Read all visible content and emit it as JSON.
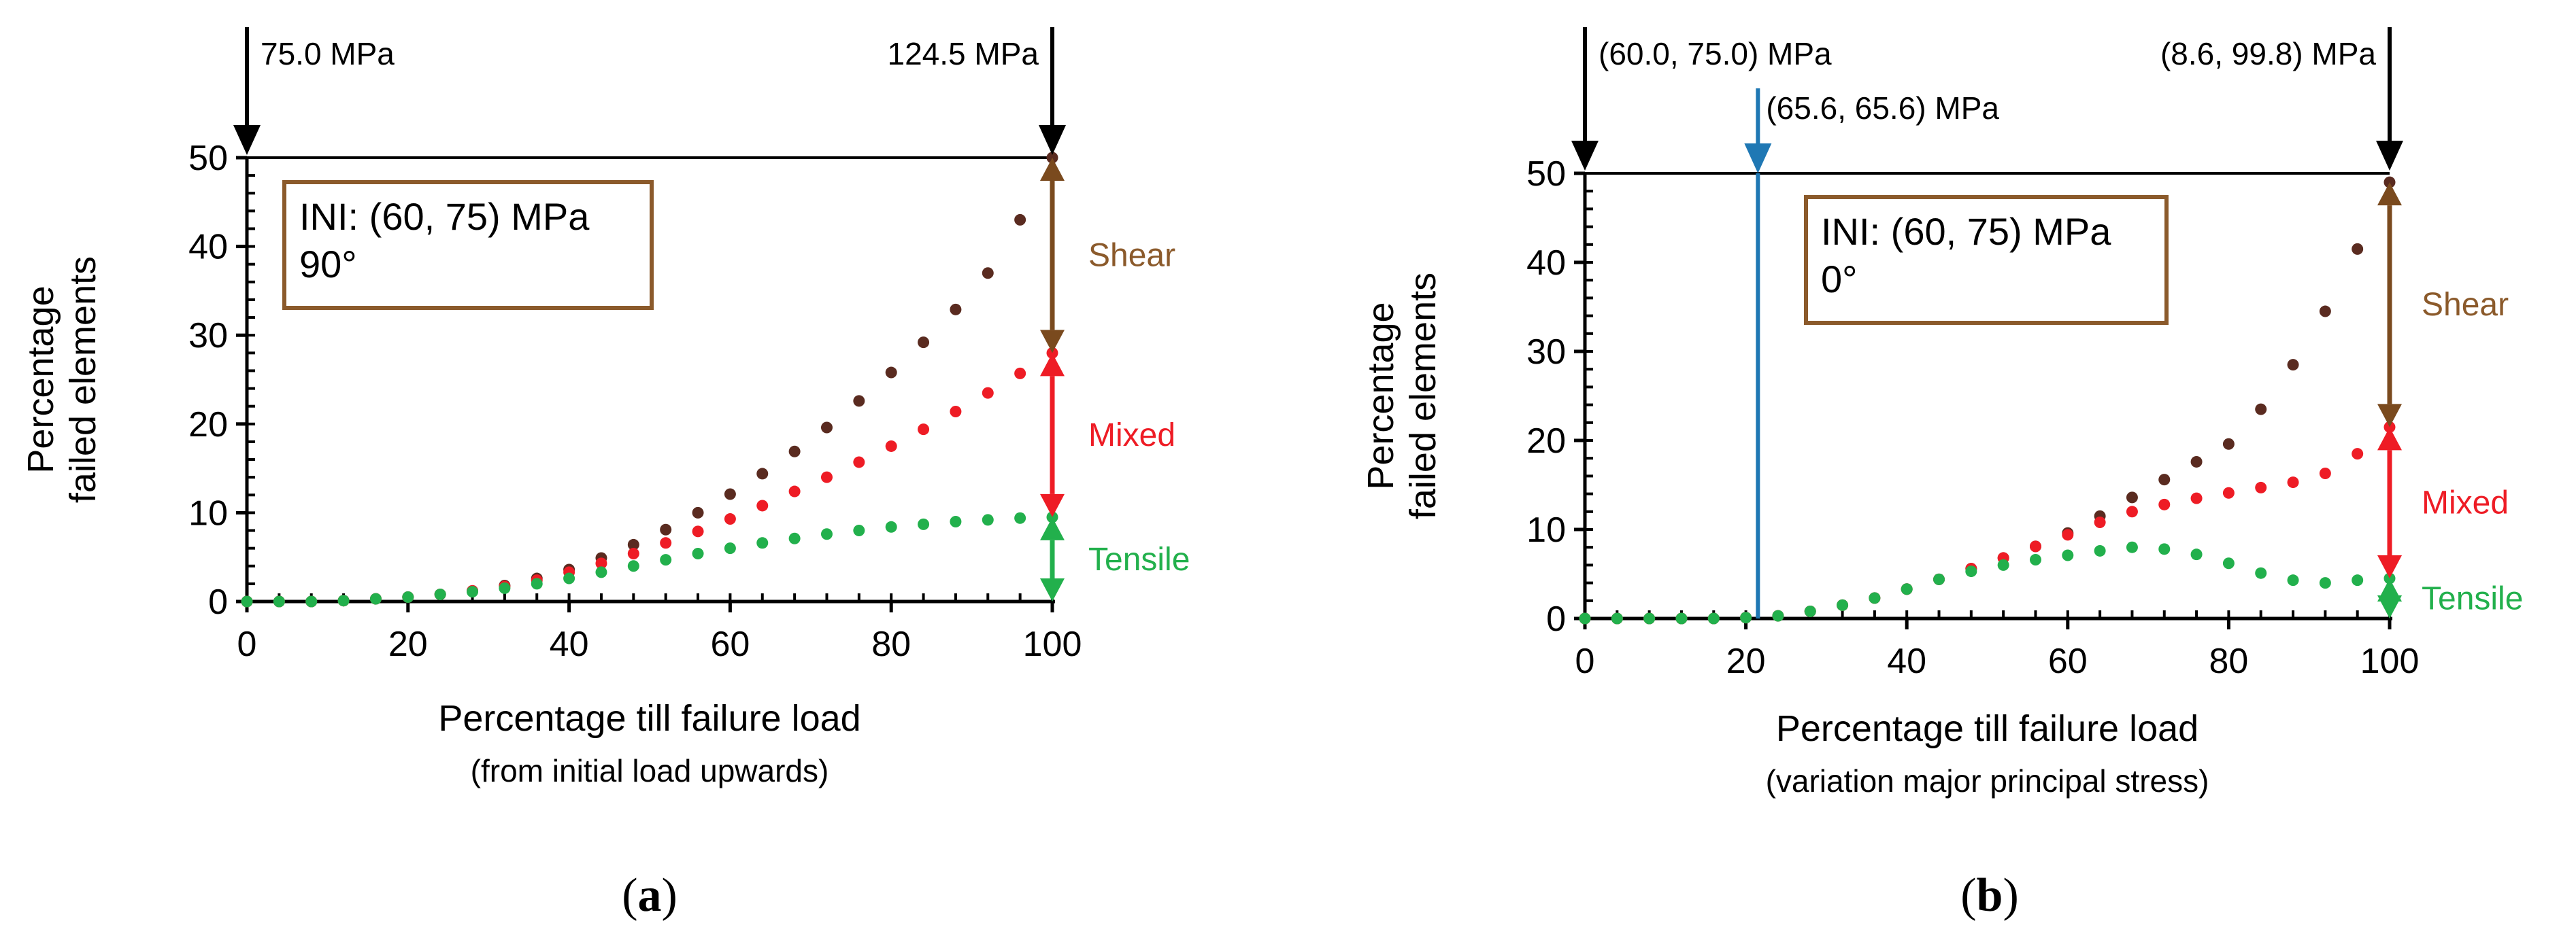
{
  "colors": {
    "shear": "#5a2b20",
    "mixed": "#ee1c25",
    "tensile": "#22b04c",
    "shear_label": "#8b5a2b",
    "mixed_label": "#ee1c25",
    "tensile_label": "#22b04c",
    "arrow_shear": "#7a4a1e",
    "blue": "#1f78b4",
    "box_border": "#8b5a2b"
  },
  "chart_data": [
    {
      "type": "scatter",
      "panel_label": "(a)",
      "xlabel": "Percentage till failure load",
      "xlabel_note": "(from initial load upwards)",
      "ylabel": [
        "Percentage",
        "failed elements"
      ],
      "xlim": [
        0,
        100
      ],
      "ylim": [
        0,
        50
      ],
      "xticks": [
        0,
        20,
        40,
        60,
        80,
        100
      ],
      "yticks": [
        0,
        10,
        20,
        30,
        40,
        50
      ],
      "box_text": [
        "INI: (60, 75) MPa",
        "90°"
      ],
      "load_annotations": [
        {
          "x": 0,
          "text": "75.0 MPa"
        },
        {
          "x": 100,
          "text": "124.5 MPa"
        }
      ],
      "range_labels": [
        {
          "name": "Shear",
          "from": 28,
          "to": 50
        },
        {
          "name": "Mixed",
          "from": 9.5,
          "to": 28
        },
        {
          "name": "Tensile",
          "from": 0,
          "to": 9.5
        }
      ],
      "series": [
        {
          "name": "Shear",
          "x": [
            0,
            4,
            8,
            12,
            16,
            20,
            24,
            28,
            32,
            36,
            40,
            44,
            48,
            52,
            56,
            60,
            64,
            68,
            72,
            76,
            80,
            84,
            88,
            92,
            96,
            100
          ],
          "y": [
            0,
            0,
            0,
            0.1,
            0.3,
            0.5,
            0.8,
            1.2,
            1.8,
            2.6,
            3.6,
            4.9,
            6.4,
            8.1,
            10.0,
            12.1,
            14.4,
            16.9,
            19.6,
            22.6,
            25.8,
            29.2,
            32.9,
            37.0,
            43.0,
            50.0
          ]
        },
        {
          "name": "Mixed",
          "x": [
            0,
            4,
            8,
            12,
            16,
            20,
            24,
            28,
            32,
            36,
            40,
            44,
            48,
            52,
            56,
            60,
            64,
            68,
            72,
            76,
            80,
            84,
            88,
            92,
            96,
            100
          ],
          "y": [
            0,
            0,
            0,
            0.1,
            0.3,
            0.5,
            0.8,
            1.2,
            1.7,
            2.4,
            3.3,
            4.3,
            5.4,
            6.6,
            7.9,
            9.3,
            10.8,
            12.4,
            14.0,
            15.7,
            17.5,
            19.4,
            21.4,
            23.5,
            25.7,
            28.0
          ]
        },
        {
          "name": "Tensile",
          "x": [
            0,
            4,
            8,
            12,
            16,
            20,
            24,
            28,
            32,
            36,
            40,
            44,
            48,
            52,
            56,
            60,
            64,
            68,
            72,
            76,
            80,
            84,
            88,
            92,
            96,
            100
          ],
          "y": [
            0,
            0,
            0,
            0.1,
            0.3,
            0.5,
            0.8,
            1.1,
            1.5,
            2.0,
            2.6,
            3.3,
            4.0,
            4.7,
            5.4,
            6.0,
            6.6,
            7.1,
            7.6,
            8.0,
            8.4,
            8.7,
            9.0,
            9.2,
            9.4,
            9.5
          ]
        }
      ]
    },
    {
      "type": "scatter",
      "panel_label": "(b)",
      "xlabel": "Percentage till failure load",
      "xlabel_note": "(variation major principal stress)",
      "ylabel": [
        "Percentage",
        "failed elements"
      ],
      "xlim": [
        0,
        100
      ],
      "ylim": [
        0,
        50
      ],
      "xticks": [
        0,
        20,
        40,
        60,
        80,
        100
      ],
      "yticks": [
        0,
        10,
        20,
        30,
        40,
        50
      ],
      "box_text": [
        "INI: (60, 75) MPa",
        "0°"
      ],
      "load_annotations": [
        {
          "x": 0,
          "text": "(60.0, 75.0) MPa"
        },
        {
          "x": 100,
          "text": "(8.6, 99.8) MPa"
        }
      ],
      "vline": {
        "x": 21.5,
        "text": "(65.6, 65.6) MPa"
      },
      "range_labels": [
        {
          "name": "Shear",
          "from": 21.5,
          "to": 49
        },
        {
          "name": "Mixed",
          "from": 4.5,
          "to": 21.5
        },
        {
          "name": "Tensile",
          "from": 0,
          "to": 4.5
        }
      ],
      "series": [
        {
          "name": "Shear",
          "x": [
            0,
            4,
            8,
            12,
            16,
            20,
            24,
            28,
            32,
            36,
            40,
            44,
            48,
            52,
            56,
            60,
            64,
            68,
            72,
            76,
            80,
            84,
            88,
            92,
            96,
            100
          ],
          "y": [
            0,
            0,
            0,
            0,
            0,
            0.1,
            0.3,
            0.8,
            1.5,
            2.3,
            3.3,
            4.4,
            5.6,
            6.8,
            8.1,
            9.6,
            11.5,
            13.6,
            15.6,
            17.6,
            19.6,
            23.5,
            28.5,
            34.5,
            41.5,
            49.0
          ]
        },
        {
          "name": "Mixed",
          "x": [
            0,
            4,
            8,
            12,
            16,
            20,
            24,
            28,
            32,
            36,
            40,
            44,
            48,
            52,
            56,
            60,
            64,
            68,
            72,
            76,
            80,
            84,
            88,
            92,
            96,
            100
          ],
          "y": [
            0,
            0,
            0,
            0,
            0,
            0.1,
            0.3,
            0.8,
            1.5,
            2.3,
            3.3,
            4.4,
            5.6,
            6.8,
            8.1,
            9.4,
            10.8,
            12.0,
            12.8,
            13.5,
            14.1,
            14.7,
            15.3,
            16.3,
            18.5,
            21.5
          ]
        },
        {
          "name": "Tensile",
          "x": [
            0,
            4,
            8,
            12,
            16,
            20,
            24,
            28,
            32,
            36,
            40,
            44,
            48,
            52,
            56,
            60,
            64,
            68,
            72,
            76,
            80,
            84,
            88,
            92,
            96,
            100
          ],
          "y": [
            0,
            0,
            0,
            0,
            0,
            0.1,
            0.3,
            0.8,
            1.5,
            2.3,
            3.3,
            4.4,
            5.3,
            6.0,
            6.6,
            7.1,
            7.6,
            8.0,
            7.8,
            7.2,
            6.2,
            5.1,
            4.3,
            4.0,
            4.3,
            4.5
          ]
        }
      ]
    }
  ]
}
